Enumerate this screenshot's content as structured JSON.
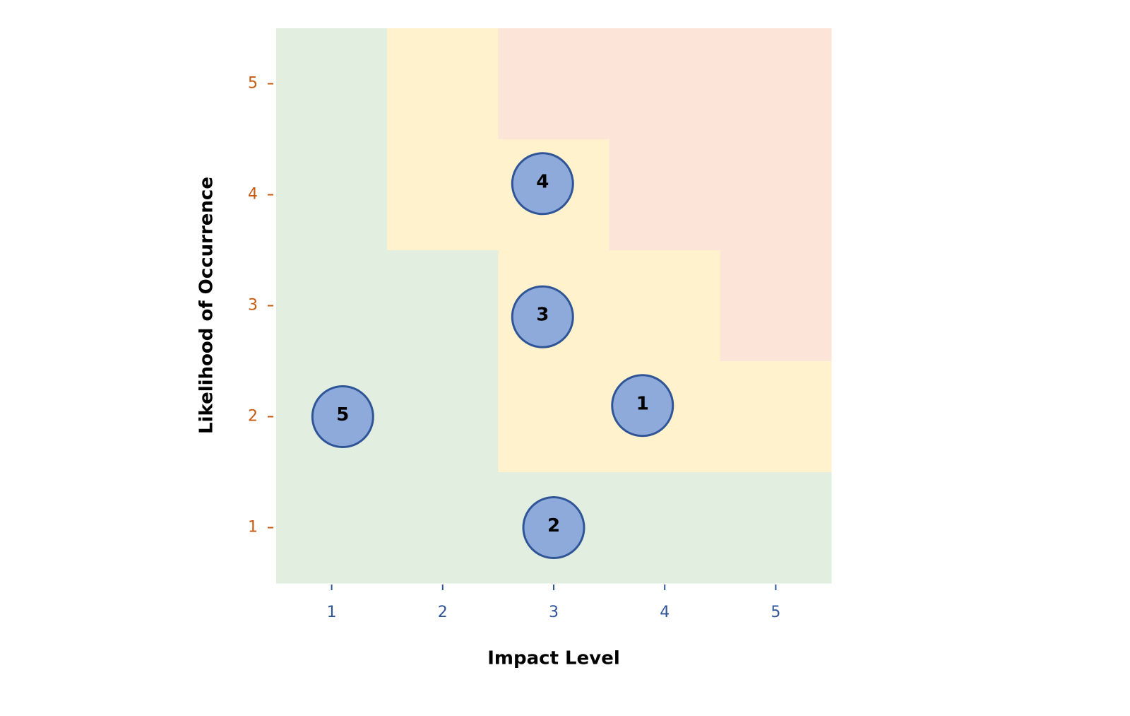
{
  "chart_data": {
    "type": "scatter",
    "xlabel": "Impact Level",
    "ylabel": "Likelihood of Occurrence",
    "x": [
      3.8,
      3.0,
      2.9,
      2.9,
      1.1
    ],
    "values": [
      2.1,
      1.0,
      2.9,
      4.1,
      2.0
    ],
    "labels": [
      "1",
      "2",
      "3",
      "4",
      "5"
    ],
    "color": "#8eaadb",
    "edgecolor": "#2f5597",
    "xlim": [
      0.5,
      5.5
    ],
    "ylim": [
      0.5,
      5.5
    ],
    "xticks": [
      1,
      2,
      3,
      4,
      5
    ],
    "yticks": [
      1,
      2,
      3,
      4,
      5
    ],
    "xtick_color": "#2f5597",
    "ytick_color": "#c55a11",
    "cell_colors": [
      [
        "#e2efe0",
        "#fff2cc",
        "#fde4d8",
        "#fde4d8",
        "#fde4d8"
      ],
      [
        "#e2efe0",
        "#fff2cc",
        "#fff2cc",
        "#fde4d8",
        "#fde4d8"
      ],
      [
        "#e2efe0",
        "#e2efe0",
        "#fff2cc",
        "#fff2cc",
        "#fde4d8"
      ],
      [
        "#e2efe0",
        "#e2efe0",
        "#fff2cc",
        "#fff2cc",
        "#fff2cc"
      ],
      [
        "#e2efe0",
        "#e2efe0",
        "#e2efe0",
        "#e2efe0",
        "#e2efe0"
      ]
    ]
  }
}
